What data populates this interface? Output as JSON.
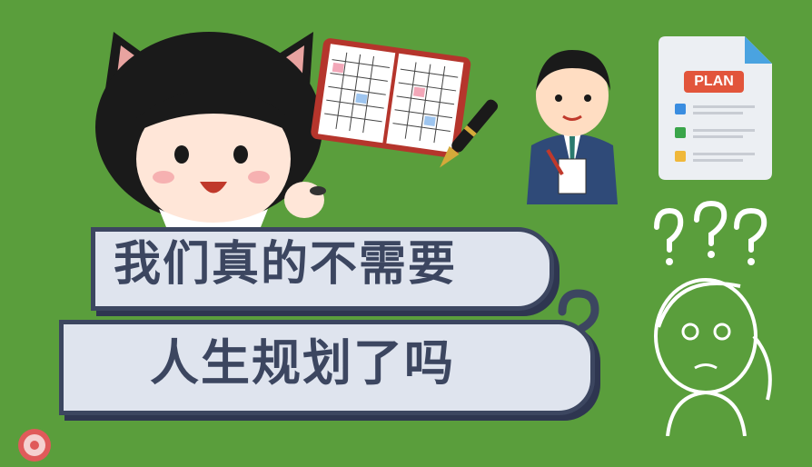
{
  "headline": {
    "line1": "我们真的不需要",
    "line2": "人生规划了吗"
  },
  "plan_card": {
    "label": "PLAN"
  },
  "colors": {
    "background": "#5a9e3c",
    "banner_fill": "#dfe4ee",
    "banner_border": "#3c4660",
    "plan_badge": "#e2553b"
  },
  "icons": [
    "cat-ear-girl-illustration",
    "planner-notebook-icon",
    "fountain-pen-icon",
    "businessman-writing-illustration",
    "plan-document-icon",
    "thinking-girl-illustration",
    "question-mark-icon",
    "logo-badge-icon"
  ]
}
